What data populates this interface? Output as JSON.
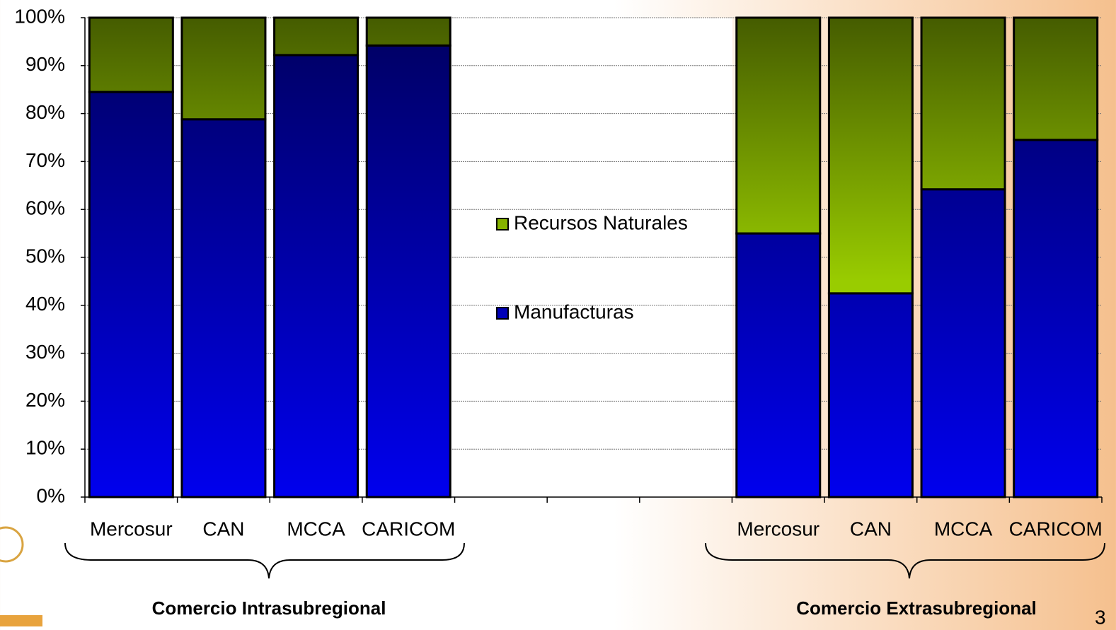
{
  "chart_data": {
    "type": "stacked_bar",
    "categories": [
      "Mercosur",
      "CAN",
      "MCCA",
      "CARICOM",
      null,
      null,
      null,
      "Mercosur",
      "CAN",
      "MCCA",
      "CARICOM"
    ],
    "series": [
      {
        "name": "Manufacturas",
        "color": "#0000ee",
        "values": [
          84.5,
          78.8,
          92.2,
          94.2,
          null,
          null,
          null,
          55,
          42.5,
          64.2,
          74.5
        ]
      },
      {
        "name": "Recursos Naturales",
        "color": "#99cc00",
        "values": [
          15.5,
          21.2,
          7.8,
          5.8,
          null,
          null,
          null,
          45,
          57.5,
          35.8,
          25.5
        ]
      }
    ],
    "ylim": [
      0,
      100
    ],
    "yticks": [
      {
        "value": 0,
        "label": "0%"
      },
      {
        "value": 10,
        "label": "10%"
      },
      {
        "value": 20,
        "label": "20%"
      },
      {
        "value": 30,
        "label": "30%"
      },
      {
        "value": 40,
        "label": "40%"
      },
      {
        "value": 50,
        "label": "50%"
      },
      {
        "value": 60,
        "label": "60%"
      },
      {
        "value": 70,
        "label": "70%"
      },
      {
        "value": 80,
        "label": "80%"
      },
      {
        "value": 90,
        "label": "90%"
      },
      {
        "value": 100,
        "label": "100%"
      }
    ],
    "grid": true,
    "groups": [
      "Comercio Intrasubregional",
      "Comercio Extrasubregional"
    ],
    "page_number": "3"
  }
}
